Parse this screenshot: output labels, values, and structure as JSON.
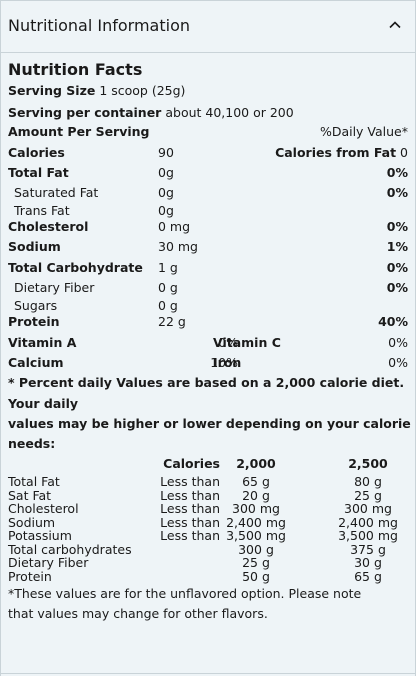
{
  "header": {
    "title": "Nutritional Information"
  },
  "facts": {
    "title": "Nutrition Facts",
    "serving_size_label": "Serving Size",
    "serving_size_value": "1 scoop (25g)",
    "servings_label": "Serving per container",
    "servings_value": "about 40,100 or 200",
    "amount_label": "Amount Per Serving",
    "dv_label": "%Daily Value*",
    "calories_label": "Calories",
    "calories_value": "90",
    "cal_fat_label": "Calories from Fat",
    "cal_fat_value": "0",
    "rows": [
      {
        "label": "Total Fat",
        "amount": "0g",
        "dv": "0%"
      },
      {
        "label": "Saturated Fat",
        "amount": "0g",
        "dv": "0%"
      },
      {
        "label": "Trans Fat",
        "amount": "0g",
        "dv": ""
      },
      {
        "label": "Cholesterol",
        "amount": "0 mg",
        "dv": "0%"
      },
      {
        "label": "Sodium",
        "amount": "30 mg",
        "dv": "1%"
      },
      {
        "label": "Total Carbohydrate",
        "amount": "1 g",
        "dv": "0%"
      },
      {
        "label": "Dietary Fiber",
        "amount": "0 g",
        "dv": "0%"
      },
      {
        "label": "Sugars",
        "amount": "0 g",
        "dv": ""
      },
      {
        "label": "Protein",
        "amount": "22 g",
        "dv": "40%"
      }
    ],
    "vitamins": [
      {
        "label1": "Vitamin A",
        "dv1": "0%",
        "label2": "Vitamin C",
        "dv2": "0%"
      },
      {
        "label1": "Calcium",
        "dv1": "10%",
        "label2": "Iron",
        "dv2": "0%"
      }
    ],
    "footnote_line1": "* Percent daily Values are based on a 2,000 calorie diet.",
    "footnote_line2": "Your daily",
    "footnote_line3": "values may be higher or lower depending on your calorie",
    "footnote_line4": "needs:"
  },
  "dv_table": {
    "col_calories": "Calories",
    "col_a": "2,000",
    "col_b": "2,500",
    "rows": [
      {
        "name": "Total Fat",
        "limit": "Less than",
        "a": "65 g",
        "b": "80 g"
      },
      {
        "name": "Sat Fat",
        "limit": "Less than",
        "a": "20 g",
        "b": "25 g"
      },
      {
        "name": "Cholesterol",
        "limit": "Less than",
        "a": "300 mg",
        "b": "300 mg"
      },
      {
        "name": "Sodium",
        "limit": "Less than",
        "a": "2,400 mg",
        "b": "2,400 mg"
      },
      {
        "name": "Potassium",
        "limit": "Less than",
        "a": "3,500 mg",
        "b": "3,500 mg"
      },
      {
        "name": "Total carbohydrates",
        "limit": "",
        "a": "300 g",
        "b": "375 g"
      },
      {
        "name": "Dietary Fiber",
        "limit": "",
        "a": "25 g",
        "b": "30 g"
      },
      {
        "name": "Protein",
        "limit": "",
        "a": "50 g",
        "b": "65 g"
      }
    ]
  },
  "note_line1": "*These values are for the unflavored option. Please note",
  "note_line2": "that values may change for other flavors."
}
